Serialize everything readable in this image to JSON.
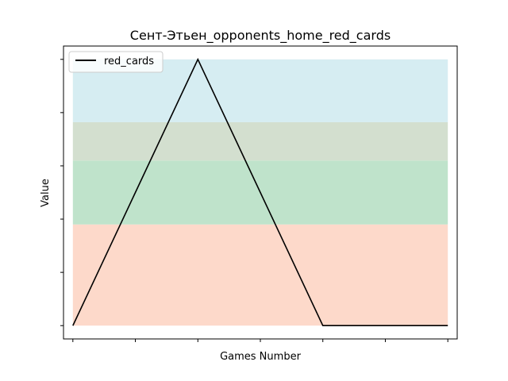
{
  "chart_data": {
    "type": "line",
    "title": "Сент-Этьен_opponents_home_red_cards",
    "xlabel": "Games Number",
    "ylabel": "Value",
    "x": [
      0,
      1,
      2,
      3,
      4,
      5,
      6
    ],
    "xlim": [
      -0.15,
      6.15
    ],
    "ylim": [
      -0.25,
      5.25
    ],
    "yticks": [
      0,
      1,
      2,
      3,
      4,
      5
    ],
    "series": [
      {
        "name": "red_cards",
        "color": "#000000",
        "values": [
          0,
          2.5,
          5,
          2.5,
          0,
          0,
          0
        ]
      }
    ],
    "bands": [
      {
        "from": 0,
        "to": 1.9,
        "color": "#fdd9ca"
      },
      {
        "from": 1.9,
        "to": 3.1,
        "color": "#bfe3cb"
      },
      {
        "from": 3.1,
        "to": 3.82,
        "color": "#d3dfcf"
      },
      {
        "from": 3.82,
        "to": 5,
        "color": "#d6edf2"
      }
    ],
    "legend_position": "top-left",
    "grid": false
  }
}
